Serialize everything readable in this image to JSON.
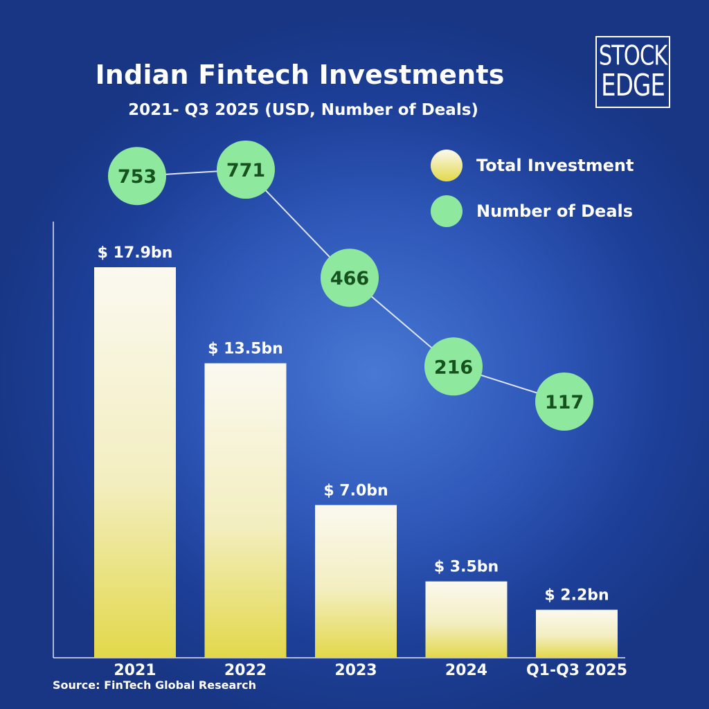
{
  "title": "Indian Fintech Investments",
  "subtitle": "2021- Q3 2025 (USD, Number of Deals)",
  "logo": {
    "line1": "STOCK",
    "line2": "EDGE"
  },
  "source": "Source: FinTech Global Research",
  "colors": {
    "bar_top": "#fbf9f0",
    "bar_bottom": "#e2d84a",
    "deal_circle": "#8ee89e",
    "deal_text": "#15521d",
    "line": "#dfe6f5"
  },
  "legend": [
    {
      "label": "Total Investment",
      "swatch": "bar"
    },
    {
      "label": "Number of Deals",
      "swatch": "circle"
    }
  ],
  "chart_data": {
    "type": "bar",
    "title": "Indian Fintech Investments",
    "subtitle": "2021- Q3 2025 (USD, Number of Deals)",
    "categories": [
      "2021",
      "2022",
      "2023",
      "2024",
      "Q1-Q3 2025"
    ],
    "series": [
      {
        "name": "Total Investment",
        "type": "bar",
        "values": [
          17.9,
          13.5,
          7.0,
          3.5,
          2.2
        ],
        "labels": [
          "$ 17.9bn",
          "$ 13.5bn",
          "$ 7.0bn",
          "$ 3.5bn",
          "$ 2.2bn"
        ]
      },
      {
        "name": "Number of Deals",
        "type": "line",
        "values": [
          753,
          771,
          466,
          216,
          117
        ],
        "labels": [
          "753",
          "771",
          "466",
          "216",
          "117"
        ]
      }
    ],
    "xlabel": "",
    "ylabel": "",
    "grid": false,
    "legend_position": "top-right"
  }
}
